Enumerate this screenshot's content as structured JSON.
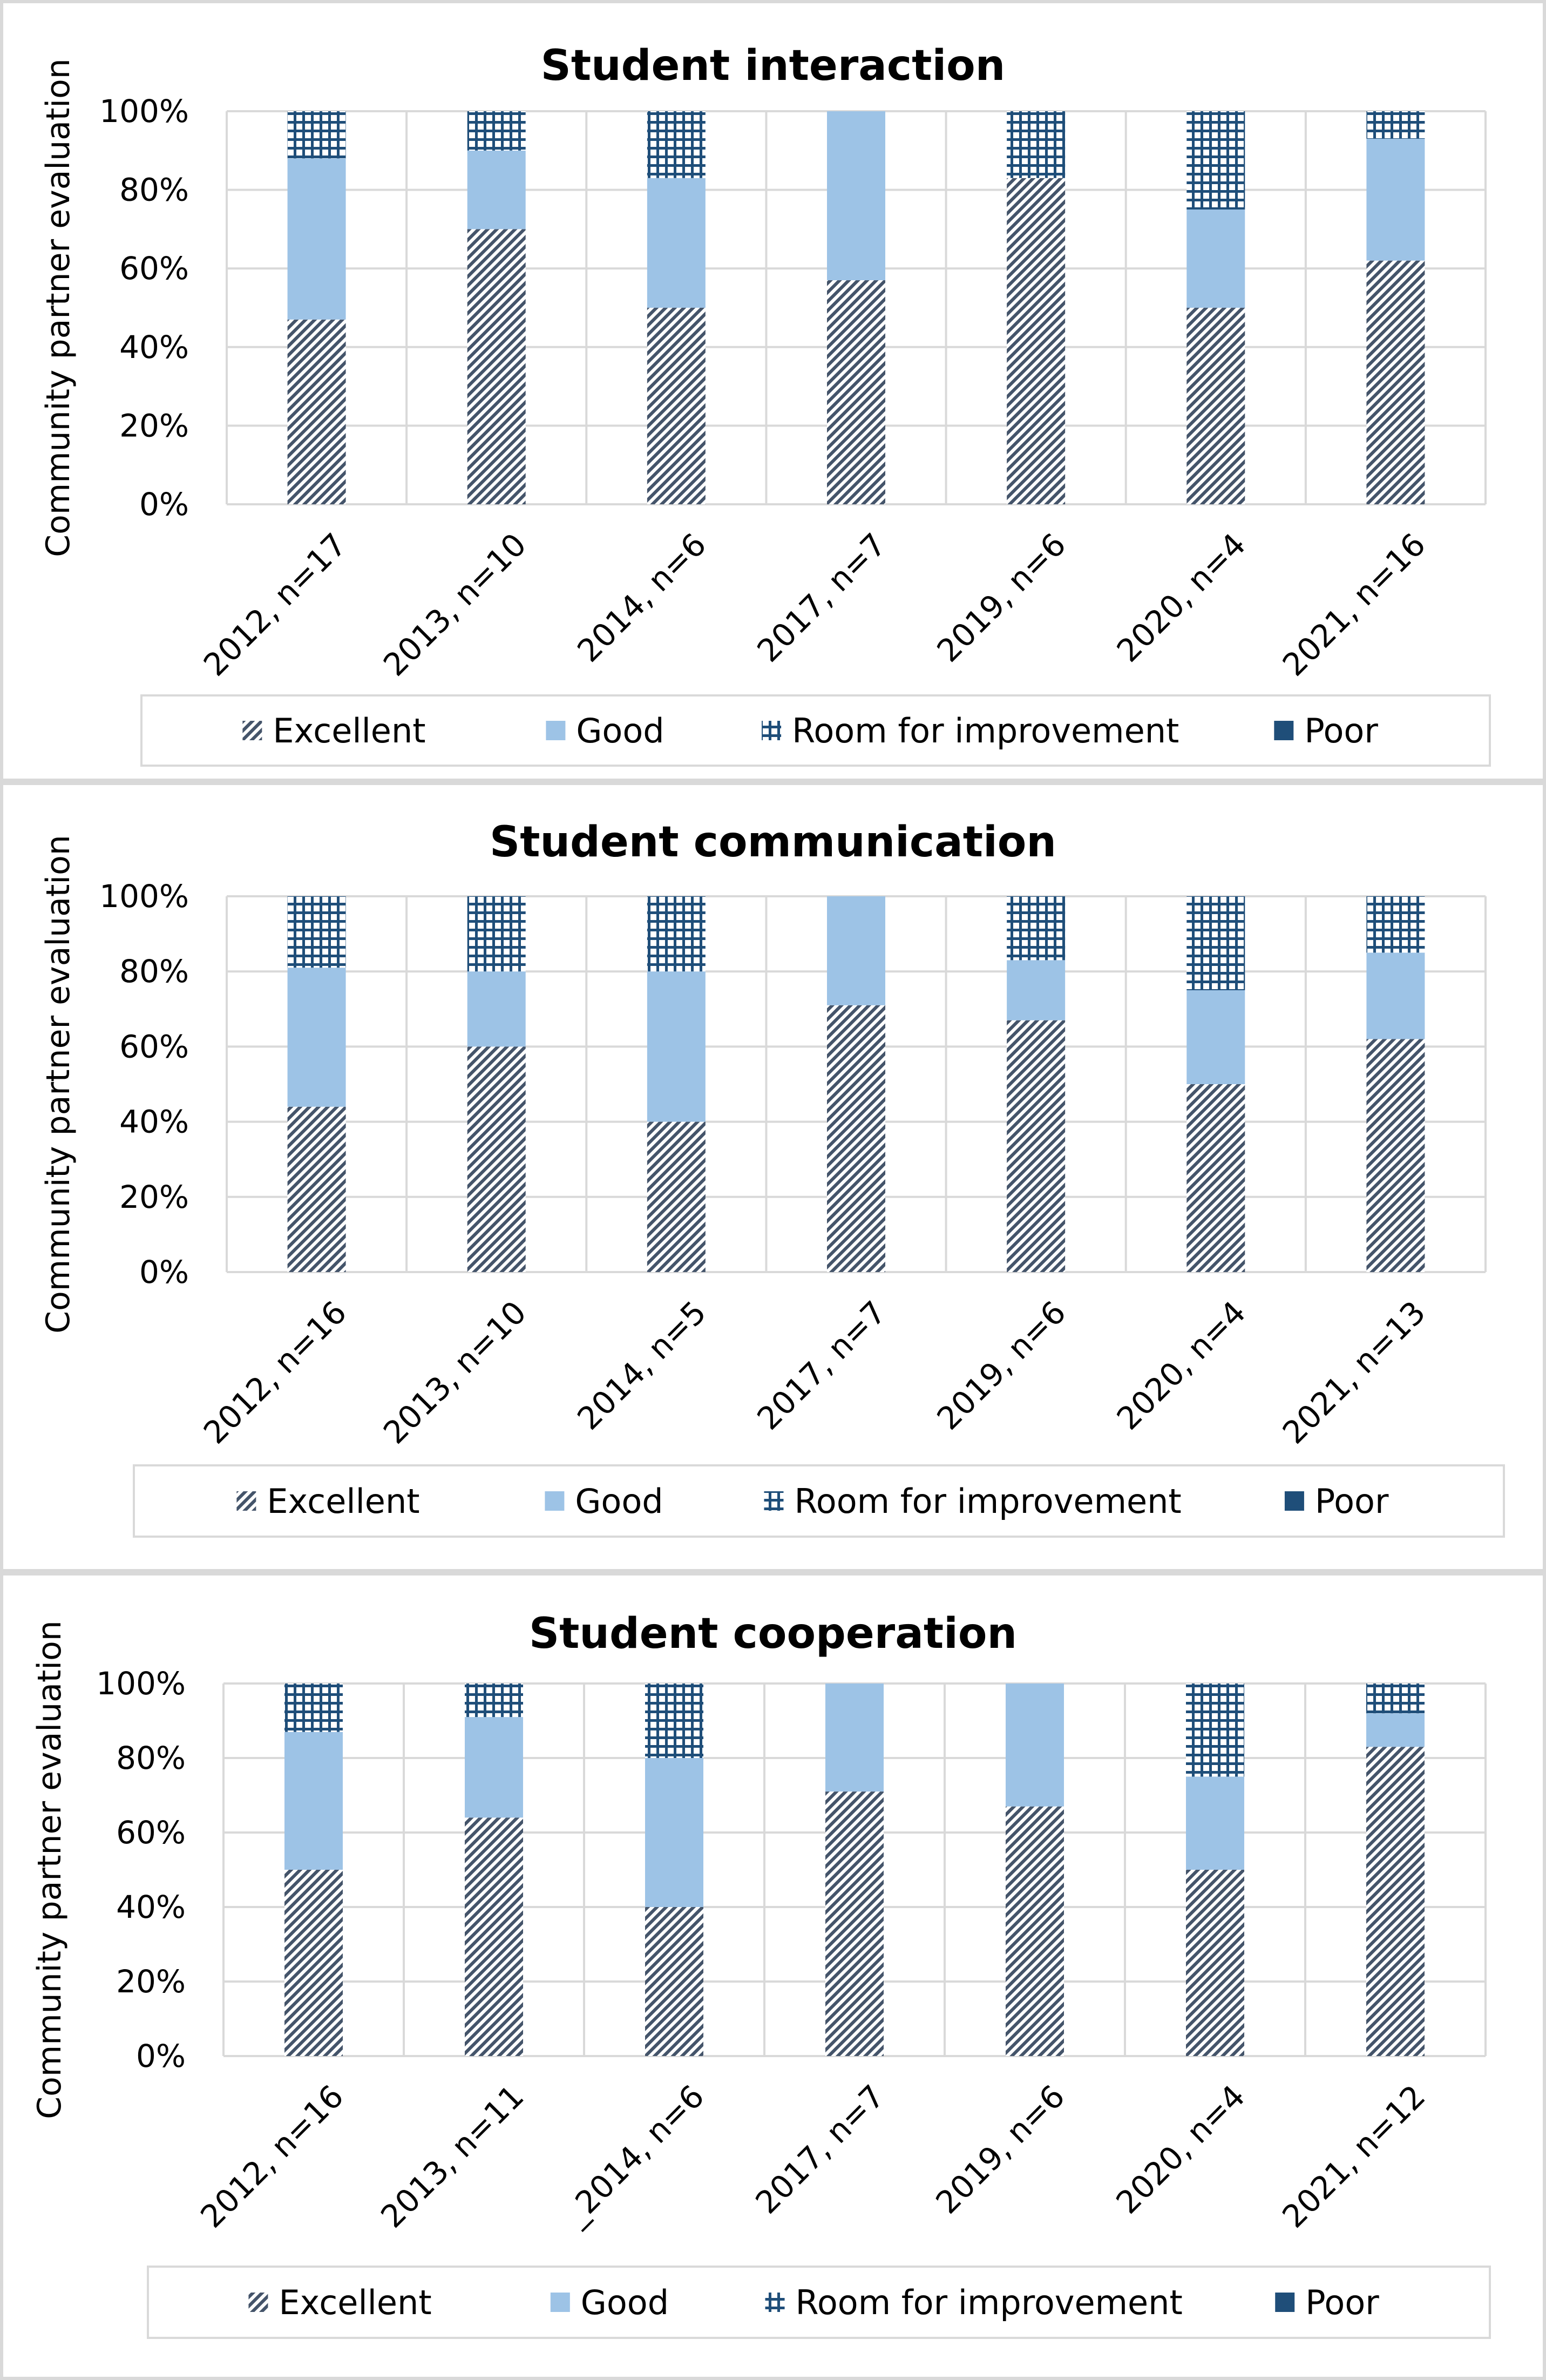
{
  "colors": {
    "excellent_stripe": "#44546a",
    "good": "#9dc3e6",
    "room_for_improvement_grid": "#1f4e79",
    "poor": "#1f4e79",
    "gridline": "#d9d9d9",
    "panel_border": "#d9d9d9"
  },
  "chart_data": [
    {
      "type": "bar",
      "stacked": true,
      "title": "Student interaction",
      "ylabel": "Community partner evaluation",
      "xlabel": "",
      "ylim": [
        0,
        100
      ],
      "yticks": [
        "0%",
        "20%",
        "40%",
        "60%",
        "80%",
        "100%"
      ],
      "categories": [
        "2012, n=17",
        "2013, n=10",
        "2014, n=6",
        "2017, n=7",
        "2019, n=6",
        "2020, n=4",
        "2021, n=16"
      ],
      "series": [
        {
          "name": "Excellent",
          "values": [
            47,
            70,
            50,
            57,
            83,
            50,
            62
          ]
        },
        {
          "name": "Good",
          "values": [
            41,
            20,
            33,
            43,
            0,
            25,
            31
          ]
        },
        {
          "name": "Room for improvement",
          "values": [
            12,
            10,
            17,
            0,
            17,
            25,
            7
          ]
        },
        {
          "name": "Poor",
          "values": [
            0,
            0,
            0,
            0,
            0,
            0,
            0
          ]
        }
      ],
      "legend": [
        "Excellent",
        "Good",
        "Room for improvement",
        "Poor"
      ],
      "legend_position": "bottom",
      "grid": true
    },
    {
      "type": "bar",
      "stacked": true,
      "title": "Student communication",
      "ylabel": "Community partner evaluation",
      "xlabel": "",
      "ylim": [
        0,
        100
      ],
      "yticks": [
        "0%",
        "20%",
        "40%",
        "60%",
        "80%",
        "100%"
      ],
      "categories": [
        "2012, n=16",
        "2013, n=10",
        "2014, n=5",
        "2017, n=7",
        "2019, n=6",
        "2020, n=4",
        "2021, n=13"
      ],
      "series": [
        {
          "name": "Excellent",
          "values": [
            44,
            60,
            40,
            71,
            67,
            50,
            62
          ]
        },
        {
          "name": "Good",
          "values": [
            37,
            20,
            40,
            29,
            16,
            25,
            23
          ]
        },
        {
          "name": "Room for improvement",
          "values": [
            19,
            20,
            20,
            0,
            17,
            25,
            15
          ]
        },
        {
          "name": "Poor",
          "values": [
            0,
            0,
            0,
            0,
            0,
            0,
            0
          ]
        }
      ],
      "legend": [
        "Excellent",
        "Good",
        "Room for improvement",
        "Poor"
      ],
      "legend_position": "bottom",
      "grid": true
    },
    {
      "type": "bar",
      "stacked": true,
      "title": "Student cooperation",
      "ylabel": "Community partner evaluation",
      "xlabel": "",
      "ylim": [
        0,
        100
      ],
      "yticks": [
        "0%",
        "20%",
        "40%",
        "60%",
        "80%",
        "100%"
      ],
      "categories": [
        "2012, n=16",
        "2013, n=11",
        "_2014, n=6",
        "2017, n=7",
        "2019, n=6",
        "2020, n=4",
        "2021, n=12"
      ],
      "series": [
        {
          "name": "Excellent",
          "values": [
            50,
            64,
            40,
            71,
            67,
            50,
            83
          ]
        },
        {
          "name": "Good",
          "values": [
            37,
            27,
            40,
            29,
            33,
            25,
            9
          ]
        },
        {
          "name": "Room for improvement",
          "values": [
            13,
            9,
            20,
            0,
            0,
            25,
            8
          ]
        },
        {
          "name": "Poor",
          "values": [
            0,
            0,
            0,
            0,
            0,
            0,
            0
          ]
        }
      ],
      "legend": [
        "Excellent",
        "Good",
        "Room for improvement",
        "Poor"
      ],
      "legend_position": "bottom",
      "grid": true
    }
  ]
}
